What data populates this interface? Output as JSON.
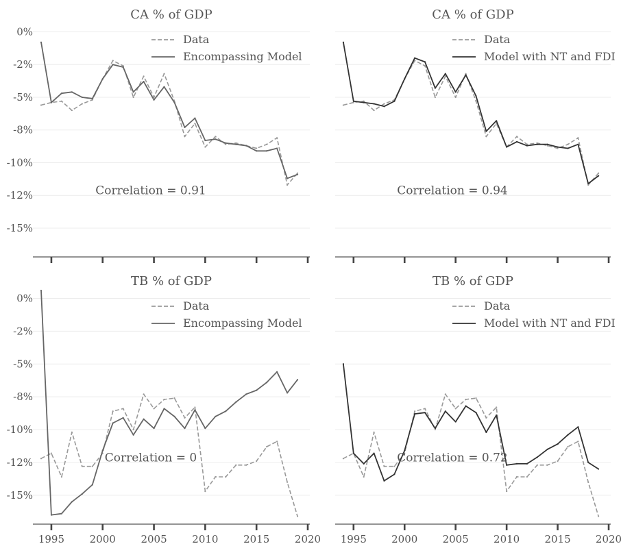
{
  "chart_data": [
    {
      "type": "line",
      "title": "CA % of GDP",
      "x": [
        1994,
        1995,
        1996,
        1997,
        1998,
        1999,
        2000,
        2001,
        2002,
        2003,
        2004,
        2005,
        2006,
        2007,
        2008,
        2009,
        2010,
        2011,
        2012,
        2013,
        2014,
        2015,
        2016,
        2017,
        2018,
        2019
      ],
      "series": [
        {
          "name": "Data",
          "style": "dashed",
          "color": "#999999",
          "values": [
            -5.6,
            -5.4,
            -5.3,
            -6.0,
            -5.5,
            -5.2,
            -3.6,
            -2.2,
            -2.6,
            -5.0,
            -3.4,
            -5.0,
            -3.2,
            -5.3,
            -8.0,
            -7.0,
            -8.8,
            -8.0,
            -8.6,
            -8.5,
            -8.7,
            -8.9,
            -8.6,
            -8.1,
            -11.7,
            -10.8
          ],
          "value_labels": [
            "-5.6%",
            "-5.4%",
            "-5.3%",
            "-6.0%",
            "-5.5%",
            "-5.2%",
            "-3.6%",
            "-2.2%",
            "-2.6%",
            "-5.0%",
            "-3.4%",
            "-5.0%",
            "-3.2%",
            "-5.3%",
            "-8.0%",
            "-7.0%",
            "-8.8%",
            "-8.0%",
            "-8.6%",
            "-8.5%",
            "-8.7%",
            "-8.9%",
            "-8.6%",
            "-8.1%",
            "-11.7%",
            "-10.8%"
          ]
        },
        {
          "name": "Encompassing Model",
          "style": "solid",
          "color": "#666666",
          "values": [
            -0.8,
            -5.4,
            -4.7,
            -4.6,
            -5.0,
            -5.1,
            -3.6,
            -2.5,
            -2.7,
            -4.6,
            -3.8,
            -5.2,
            -4.2,
            -5.4,
            -7.3,
            -6.6,
            -8.3,
            -8.2,
            -8.5,
            -8.6,
            -8.7,
            -9.1,
            -9.1,
            -8.9,
            -11.2,
            -10.9
          ],
          "value_labels": [
            "-0.8%",
            "-5.4%",
            "-4.7%",
            "-4.6%",
            "-5.0%",
            "-5.1%",
            "-3.6%",
            "-2.5%",
            "-2.7%",
            "-4.6%",
            "-3.8%",
            "-5.2%",
            "-4.2%",
            "-5.4%",
            "-7.3%",
            "-6.6%",
            "-8.3%",
            "-8.2%",
            "-8.5%",
            "-8.6%",
            "-8.7%",
            "-9.1%",
            "-9.1%",
            "-8.9%",
            "-11.2%",
            "-10.9%"
          ]
        }
      ],
      "annotation": "Correlation = 0.91",
      "y_ticks": [
        {
          "value": 0,
          "label": "0%"
        },
        {
          "value": -2.5,
          "label": "-2%"
        },
        {
          "value": -5,
          "label": "-5%"
        },
        {
          "value": -7.5,
          "label": "-8%"
        },
        {
          "value": -10,
          "label": "-10%"
        },
        {
          "value": -12.5,
          "label": "-12%"
        },
        {
          "value": -15,
          "label": "-15%"
        }
      ],
      "x_ticks": [],
      "ylim": [
        -17.2,
        0.6
      ],
      "xlim": [
        1993.2,
        2020.2
      ],
      "grid": "horizontal",
      "legend_position": "top-right"
    },
    {
      "type": "line",
      "title": "CA % of GDP",
      "x": [
        1994,
        1995,
        1996,
        1997,
        1998,
        1999,
        2000,
        2001,
        2002,
        2003,
        2004,
        2005,
        2006,
        2007,
        2008,
        2009,
        2010,
        2011,
        2012,
        2013,
        2014,
        2015,
        2016,
        2017,
        2018,
        2019
      ],
      "series": [
        {
          "name": "Data",
          "style": "dashed",
          "color": "#999999",
          "values": [
            -5.6,
            -5.4,
            -5.3,
            -6.0,
            -5.5,
            -5.2,
            -3.6,
            -2.2,
            -2.6,
            -5.0,
            -3.4,
            -5.0,
            -3.2,
            -5.3,
            -8.0,
            -7.0,
            -8.8,
            -8.0,
            -8.6,
            -8.5,
            -8.7,
            -8.9,
            -8.6,
            -8.1,
            -11.7,
            -10.8
          ],
          "value_labels": [
            "-5.6%",
            "-5.4%",
            "-5.3%",
            "-6.0%",
            "-5.5%",
            "-5.2%",
            "-3.6%",
            "-2.2%",
            "-2.6%",
            "-5.0%",
            "-3.4%",
            "-5.0%",
            "-3.2%",
            "-5.3%",
            "-8.0%",
            "-7.0%",
            "-8.8%",
            "-8.0%",
            "-8.6%",
            "-8.5%",
            "-8.7%",
            "-8.9%",
            "-8.6%",
            "-8.1%",
            "-11.7%",
            "-10.8%"
          ]
        },
        {
          "name": "Model with NT and FDI",
          "style": "solid",
          "color": "#333333",
          "values": [
            -0.8,
            -5.3,
            -5.4,
            -5.5,
            -5.7,
            -5.3,
            -3.6,
            -2.0,
            -2.3,
            -4.3,
            -3.2,
            -4.6,
            -3.3,
            -4.9,
            -7.6,
            -6.8,
            -8.8,
            -8.4,
            -8.7,
            -8.6,
            -8.6,
            -8.8,
            -8.9,
            -8.6,
            -11.6,
            -11.0
          ],
          "value_labels": [
            "-0.8%",
            "-5.3%",
            "-5.4%",
            "-5.5%",
            "-5.7%",
            "-5.3%",
            "-3.6%",
            "-2.0%",
            "-2.3%",
            "-4.3%",
            "-3.2%",
            "-4.6%",
            "-3.3%",
            "-4.9%",
            "-7.6%",
            "-6.8%",
            "-8.8%",
            "-8.4%",
            "-8.7%",
            "-8.6%",
            "-8.6%",
            "-8.8%",
            "-8.9%",
            "-8.6%",
            "-11.6%",
            "-11.0%"
          ]
        }
      ],
      "annotation": "Correlation = 0.94",
      "y_ticks": [],
      "x_ticks": [],
      "ylim": [
        -17.2,
        0.6
      ],
      "xlim": [
        1993.2,
        2020.2
      ],
      "grid": "horizontal",
      "legend_position": "top-right"
    },
    {
      "type": "line",
      "title": "TB % of GDP",
      "x": [
        1994,
        1995,
        1996,
        1997,
        1998,
        1999,
        2000,
        2001,
        2002,
        2003,
        2004,
        2005,
        2006,
        2007,
        2008,
        2009,
        2010,
        2011,
        2012,
        2013,
        2014,
        2015,
        2016,
        2017,
        2018,
        2019
      ],
      "series": [
        {
          "name": "Data",
          "style": "dashed",
          "color": "#999999",
          "values": [
            -12.2,
            -11.8,
            -13.6,
            -10.2,
            -12.8,
            -12.8,
            -11.8,
            -8.6,
            -8.4,
            -10.0,
            -7.3,
            -8.4,
            -7.7,
            -7.6,
            -9.1,
            -8.3,
            -14.7,
            -13.6,
            -13.6,
            -12.7,
            -12.7,
            -12.4,
            -11.3,
            -10.9,
            -14.0,
            -16.6
          ],
          "value_labels": [
            "-12.2%",
            "-11.8%",
            "-13.6%",
            "-10.2%",
            "-12.8%",
            "-12.8%",
            "-11.8%",
            "-8.6%",
            "-8.4%",
            "-10.0%",
            "-7.3%",
            "-8.4%",
            "-7.7%",
            "-7.6%",
            "-9.1%",
            "-8.3%",
            "-14.7%",
            "-13.6%",
            "-13.6%",
            "-12.7%",
            "-12.7%",
            "-12.4%",
            "-11.3%",
            "-10.9%",
            "-14.0%",
            "-16.6%"
          ]
        },
        {
          "name": "Encompassing Model",
          "style": "solid",
          "color": "#666666",
          "values": [
            0.6,
            -16.5,
            -16.4,
            -15.5,
            -14.9,
            -14.2,
            -11.6,
            -9.5,
            -9.1,
            -10.4,
            -9.2,
            -9.9,
            -8.4,
            -9.0,
            -9.9,
            -8.5,
            -9.9,
            -9.0,
            -8.6,
            -7.9,
            -7.3,
            -7.0,
            -6.4,
            -5.6,
            -7.2,
            -6.2
          ],
          "value_labels": [
            "0.6%",
            "-16.5%",
            "-16.4%",
            "-15.5%",
            "-14.9%",
            "-14.2%",
            "-11.6%",
            "-9.5%",
            "-9.1%",
            "-10.4%",
            "-9.2%",
            "-9.9%",
            "-8.4%",
            "-9.0%",
            "-9.9%",
            "-8.5%",
            "-9.9%",
            "-9.0%",
            "-8.6%",
            "-7.9%",
            "-7.3%",
            "-7.0%",
            "-6.4%",
            "-5.6%",
            "-7.2%",
            "-6.2%"
          ]
        }
      ],
      "annotation": "Correlation = 0",
      "y_ticks": [
        {
          "value": 0,
          "label": "0%"
        },
        {
          "value": -2.5,
          "label": "-2%"
        },
        {
          "value": -5,
          "label": "-5%"
        },
        {
          "value": -7.5,
          "label": "-8%"
        },
        {
          "value": -10,
          "label": "-10%"
        },
        {
          "value": -12.5,
          "label": "-12%"
        },
        {
          "value": -15,
          "label": "-15%"
        }
      ],
      "x_ticks": [
        {
          "value": 1995,
          "label": "1995"
        },
        {
          "value": 2000,
          "label": "2000"
        },
        {
          "value": 2005,
          "label": "2005"
        },
        {
          "value": 2010,
          "label": "2010"
        },
        {
          "value": 2015,
          "label": "2015"
        },
        {
          "value": 2020,
          "label": "2020"
        }
      ],
      "ylim": [
        -17.2,
        0.6
      ],
      "xlim": [
        1993.2,
        2020.2
      ],
      "grid": "horizontal",
      "legend_position": "top-right"
    },
    {
      "type": "line",
      "title": "TB % of GDP",
      "x": [
        1994,
        1995,
        1996,
        1997,
        1998,
        1999,
        2000,
        2001,
        2002,
        2003,
        2004,
        2005,
        2006,
        2007,
        2008,
        2009,
        2010,
        2011,
        2012,
        2013,
        2014,
        2015,
        2016,
        2017,
        2018,
        2019
      ],
      "series": [
        {
          "name": "Data",
          "style": "dashed",
          "color": "#999999",
          "values": [
            -12.2,
            -11.8,
            -13.6,
            -10.2,
            -12.8,
            -12.8,
            -11.8,
            -8.6,
            -8.4,
            -10.0,
            -7.3,
            -8.4,
            -7.7,
            -7.6,
            -9.1,
            -8.3,
            -14.7,
            -13.6,
            -13.6,
            -12.7,
            -12.7,
            -12.4,
            -11.3,
            -10.9,
            -14.0,
            -16.6
          ],
          "value_labels": [
            "-12.2%",
            "-11.8%",
            "-13.6%",
            "-10.2%",
            "-12.8%",
            "-12.8%",
            "-11.8%",
            "-8.6%",
            "-8.4%",
            "-10.0%",
            "-7.3%",
            "-8.4%",
            "-7.7%",
            "-7.6%",
            "-9.1%",
            "-8.3%",
            "-14.7%",
            "-13.6%",
            "-13.6%",
            "-12.7%",
            "-12.7%",
            "-12.4%",
            "-11.3%",
            "-10.9%",
            "-14.0%",
            "-16.6%"
          ]
        },
        {
          "name": "Model with NT and FDI",
          "style": "solid",
          "color": "#333333",
          "values": [
            -5.0,
            -11.8,
            -12.6,
            -11.8,
            -13.9,
            -13.4,
            -11.6,
            -8.8,
            -8.7,
            -9.9,
            -8.6,
            -9.4,
            -8.2,
            -8.7,
            -10.2,
            -8.9,
            -12.7,
            -12.6,
            -12.6,
            -12.1,
            -11.5,
            -11.1,
            -10.4,
            -9.8,
            -12.5,
            -13.0
          ],
          "value_labels": [
            "-5.0%",
            "-11.8%",
            "-12.6%",
            "-11.8%",
            "-13.9%",
            "-13.4%",
            "-11.6%",
            "-8.8%",
            "-8.7%",
            "-9.9%",
            "-8.6%",
            "-9.4%",
            "-8.2%",
            "-8.7%",
            "-10.2%",
            "-8.9%",
            "-12.7%",
            "-12.6%",
            "-12.6%",
            "-12.1%",
            "-11.5%",
            "-11.1%",
            "-10.4%",
            "-9.8%",
            "-12.5%",
            "-13.0%"
          ]
        }
      ],
      "annotation": "Correlation = 0.72",
      "y_ticks": [],
      "x_ticks": [
        {
          "value": 1995,
          "label": "1995"
        },
        {
          "value": 2000,
          "label": "2000"
        },
        {
          "value": 2005,
          "label": "2005"
        },
        {
          "value": 2010,
          "label": "2010"
        },
        {
          "value": 2015,
          "label": "2015"
        },
        {
          "value": 2020,
          "label": "2020"
        }
      ],
      "ylim": [
        -17.2,
        0.6
      ],
      "xlim": [
        1993.2,
        2020.2
      ],
      "grid": "horizontal",
      "legend_position": "top-right"
    }
  ]
}
